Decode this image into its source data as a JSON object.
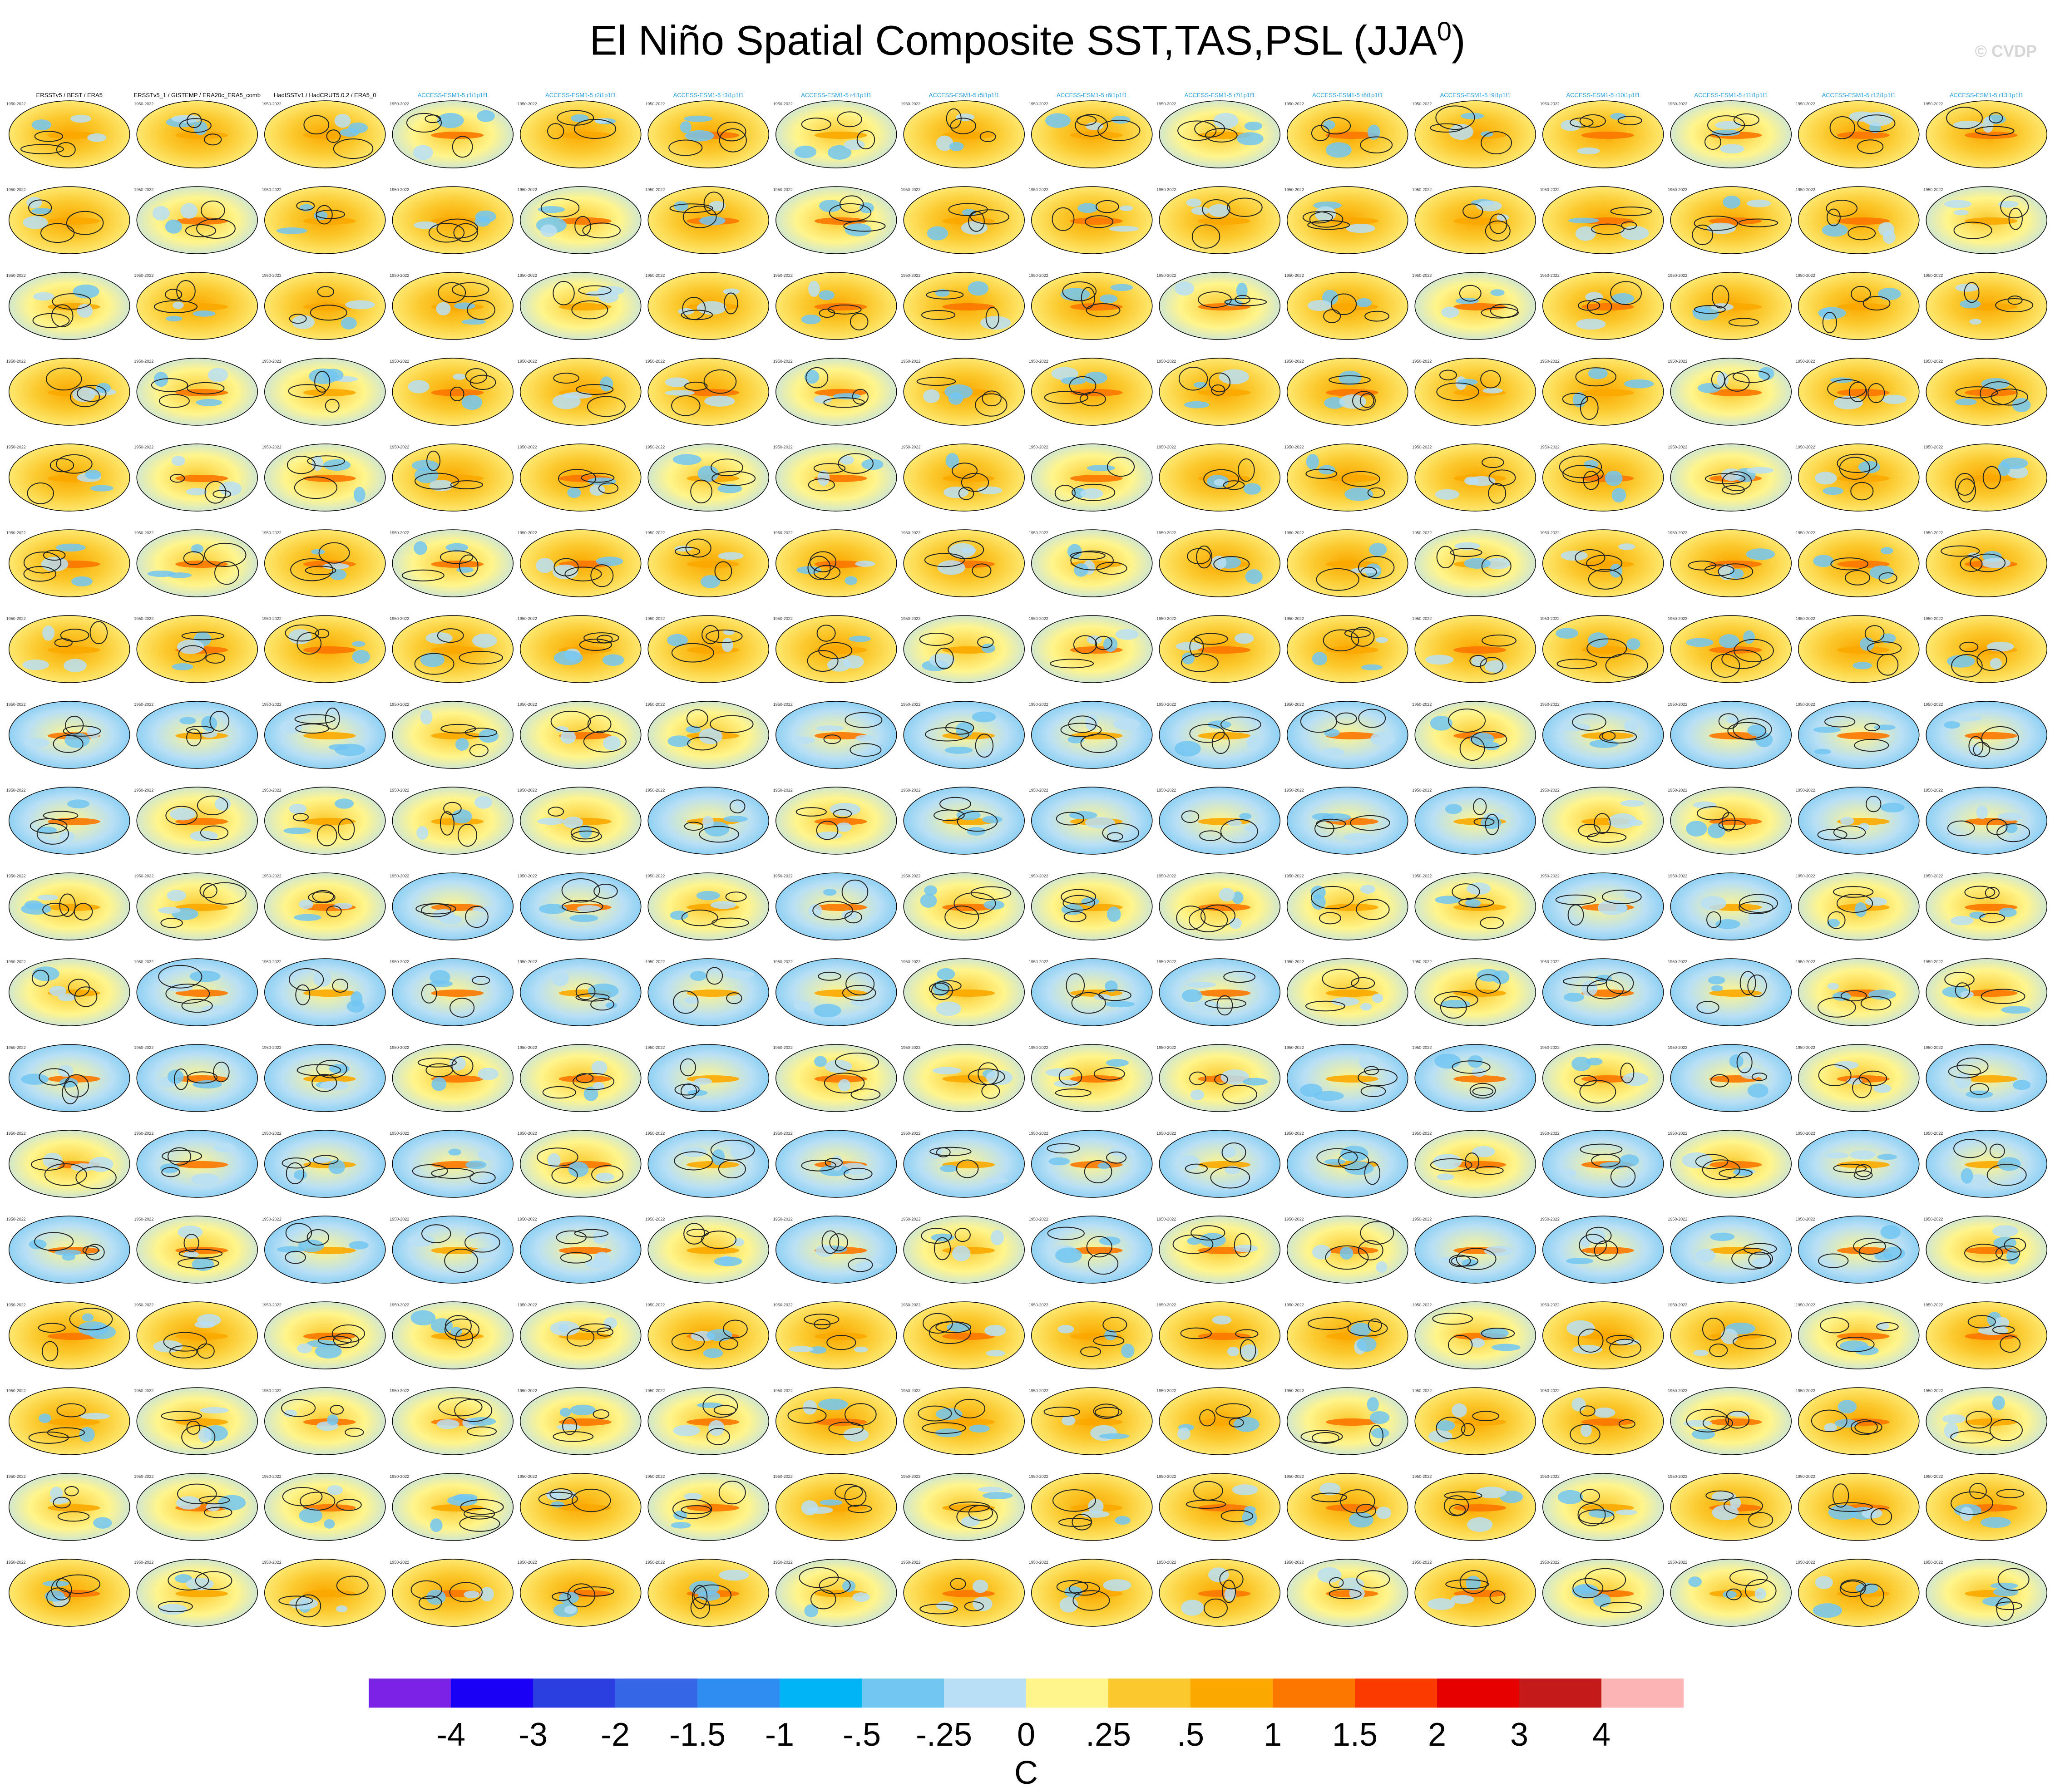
{
  "title_main": "El Niño Spatial Composite SST,TAS,PSL (JJA",
  "title_sup": "0",
  "title_end": ")",
  "credit": "© CVDP",
  "chart_data": {
    "type": "heatmap",
    "title": "El Niño Spatial Composite SST,TAS,PSL (JJA0)",
    "grid": {
      "rows": 18,
      "cols": 16
    },
    "panel_titles_row1": [
      "ERSSTv5 / BEST / ERA5",
      "ERSSTv5_1 / GISTEMP / ERA20c_ERA5_comb",
      "HadISSTv1 / HadCRUT5.0.2 / ERA5_0",
      "ACCESS-ESM1-5 r1i1p1f1",
      "ACCESS-ESM1-5 r2i1p1f1",
      "ACCESS-ESM1-5 r3i1p1f1",
      "ACCESS-ESM1-5 r4i1p1f1",
      "ACCESS-ESM1-5 r5i1p1f1",
      "ACCESS-ESM1-5 r6i1p1f1",
      "ACCESS-ESM1-5 r7i1p1f1",
      "ACCESS-ESM1-5 r8i1p1f1",
      "ACCESS-ESM1-5 r9i1p1f1",
      "ACCESS-ESM1-5 r10i1p1f1",
      "ACCESS-ESM1-5 r11i1p1f1",
      "ACCESS-ESM1-5 r12i1p1f1",
      "ACCESS-ESM1-5 r13i1p1f1"
    ],
    "panel_year_label": "1950-2022",
    "colorbar": {
      "unit": "C",
      "levels": [
        "-4",
        "-3",
        "-2",
        "-1.5",
        "-1",
        "-.5",
        "-.25",
        "0",
        ".25",
        ".5",
        "1",
        "1.5",
        "2",
        "3",
        "4"
      ],
      "colors": [
        "#7b22e6",
        "#1a00f5",
        "#2b3ee0",
        "#3566e6",
        "#2f8cf0",
        "#00b4f5",
        "#72c6f2",
        "#b8dff5",
        "#fff58c",
        "#fbc92e",
        "#fba800",
        "#fb7700",
        "#fb3a00",
        "#e60000",
        "#c41a1a",
        "#fcb4b4"
      ]
    }
  }
}
